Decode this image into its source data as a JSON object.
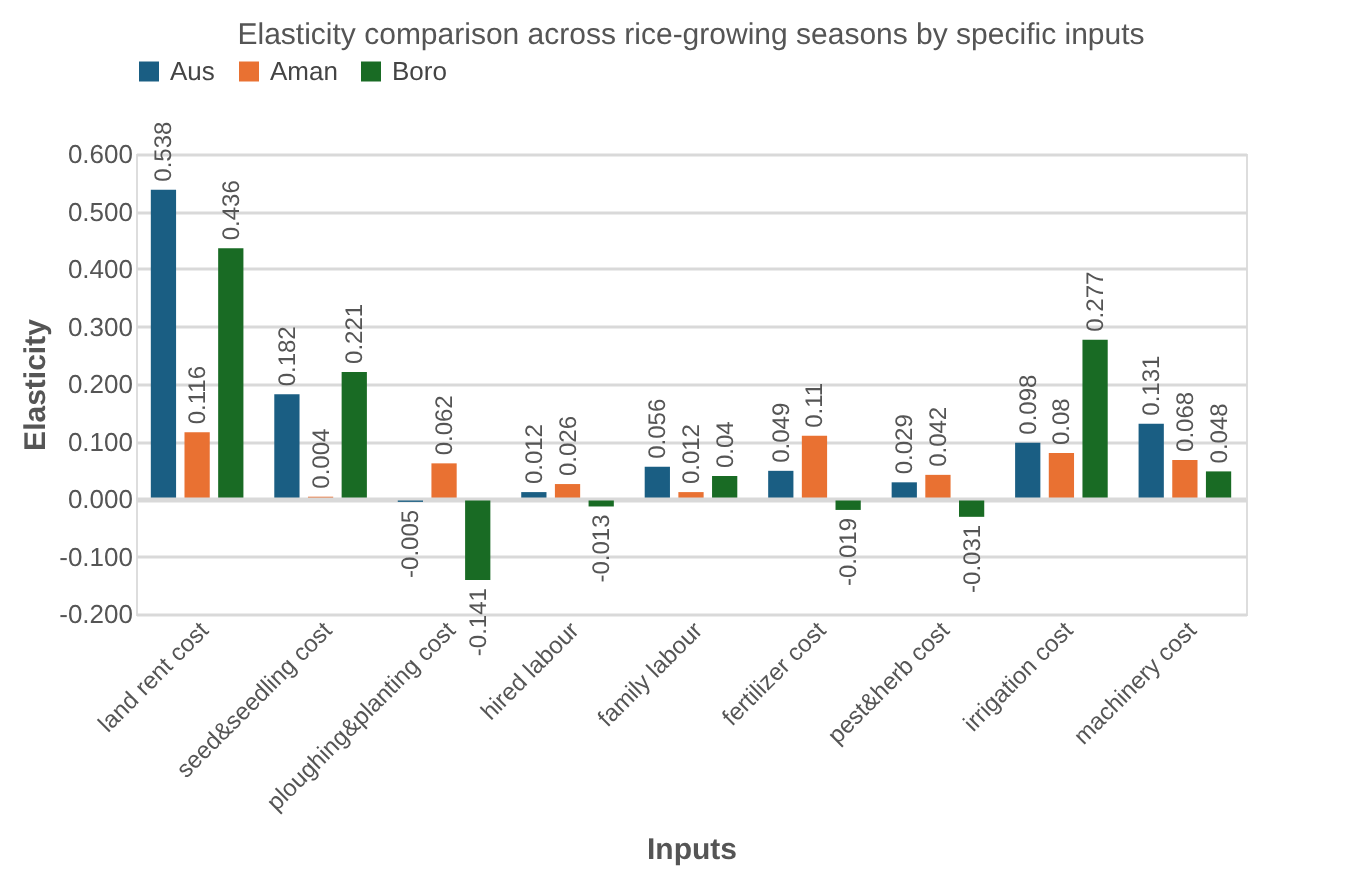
{
  "chart_data": {
    "type": "bar",
    "title": "Elasticity comparison across rice-growing seasons by specific inputs",
    "xlabel": "Inputs",
    "ylabel": "Elasticity",
    "categories": [
      "land rent cost",
      "seed&seedling cost",
      "ploughing&planting cost",
      "hired labour",
      "family labour",
      "fertilizer cost",
      "pest&herb cost",
      "irrigation cost",
      "machinery cost"
    ],
    "series": [
      {
        "name": "Aus",
        "color": "#1a5e83",
        "values": [
          0.538,
          0.182,
          -0.005,
          0.012,
          0.056,
          0.049,
          0.029,
          0.098,
          0.131
        ]
      },
      {
        "name": "Aman",
        "color": "#e97132",
        "values": [
          0.116,
          0.004,
          0.062,
          0.026,
          0.012,
          0.11,
          0.042,
          0.08,
          0.068
        ]
      },
      {
        "name": "Boro",
        "color": "#196b24",
        "values": [
          0.436,
          0.221,
          -0.141,
          -0.013,
          0.04,
          -0.019,
          -0.031,
          0.277,
          0.048
        ]
      }
    ],
    "ylim": [
      -0.2,
      0.6
    ],
    "yticks": [
      {
        "value": -0.2,
        "label": "-0.200"
      },
      {
        "value": -0.1,
        "label": "-0.100"
      },
      {
        "value": 0,
        "label": "0.000"
      },
      {
        "value": 0.1,
        "label": "0.100"
      },
      {
        "value": 0.2,
        "label": "0.200"
      },
      {
        "value": 0.3,
        "label": "0.300"
      },
      {
        "value": 0.4,
        "label": "0.400"
      },
      {
        "value": 0.5,
        "label": "0.500"
      },
      {
        "value": 0.6,
        "label": "0.600"
      }
    ],
    "grid": "y",
    "legend": "top",
    "data_labels": true
  }
}
